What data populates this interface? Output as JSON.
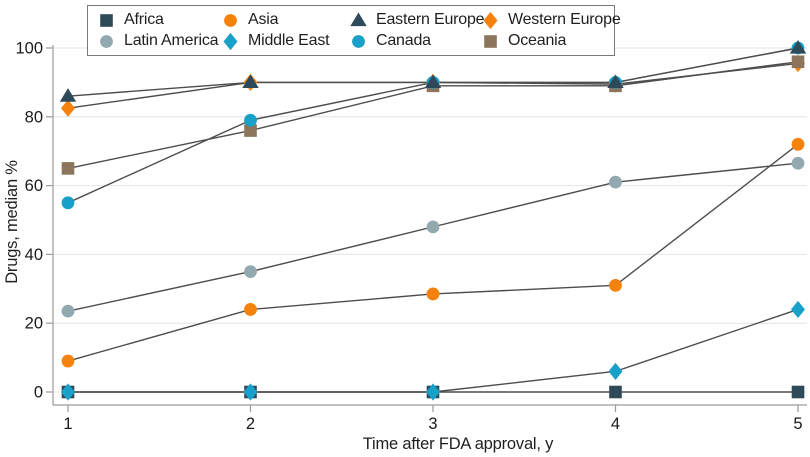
{
  "chart_data": {
    "type": "line",
    "title": "",
    "xlabel": "Time after FDA approval, y",
    "ylabel": "Drugs, median %",
    "x": [
      1,
      2,
      3,
      4,
      5
    ],
    "xlim": [
      1,
      5
    ],
    "ylim": [
      0,
      100
    ],
    "yticks": [
      0,
      20,
      40,
      60,
      80,
      100
    ],
    "grid": "horizontal",
    "legend_position": "top-left-box",
    "legend_rows": [
      [
        "Africa",
        "Asia",
        "Eastern Europe",
        "Western Europe"
      ],
      [
        "Latin America",
        "Middle East",
        "Canada",
        "Oceania"
      ]
    ],
    "series": [
      {
        "name": "Africa",
        "marker": "square",
        "color": "#2E4A5A",
        "values": [
          0,
          0,
          0,
          0,
          0
        ]
      },
      {
        "name": "Asia",
        "marker": "circle",
        "color": "#F5820C",
        "values": [
          9,
          24,
          28.5,
          31,
          72
        ]
      },
      {
        "name": "Eastern Europe",
        "marker": "triangle",
        "color": "#2E4A5A",
        "values": [
          86,
          90,
          90,
          90,
          100
        ]
      },
      {
        "name": "Western Europe",
        "marker": "diamond",
        "color": "#F5820C",
        "values": [
          82.5,
          90,
          90,
          89.5,
          95.5
        ]
      },
      {
        "name": "Latin America",
        "marker": "circle",
        "color": "#92A9B0",
        "values": [
          23.5,
          35,
          48,
          61,
          66.5
        ]
      },
      {
        "name": "Middle East",
        "marker": "diamond",
        "color": "#18A0C8",
        "values": [
          0,
          0,
          0,
          6,
          24
        ]
      },
      {
        "name": "Canada",
        "marker": "circle",
        "color": "#18A0C8",
        "values": [
          55,
          79,
          90,
          90,
          100
        ]
      },
      {
        "name": "Oceania",
        "marker": "square",
        "color": "#8C755C",
        "values": [
          65,
          76,
          89,
          89,
          96
        ]
      }
    ],
    "draw_order": [
      "Latin America",
      "Asia",
      "Africa",
      "Middle East",
      "Western Europe",
      "Oceania",
      "Canada",
      "Eastern Europe"
    ],
    "colors": {
      "line": "#4D4D4D",
      "grid": "#E4E4E4",
      "axis": "#9A9A9A",
      "text": "#1A1A1A"
    }
  }
}
